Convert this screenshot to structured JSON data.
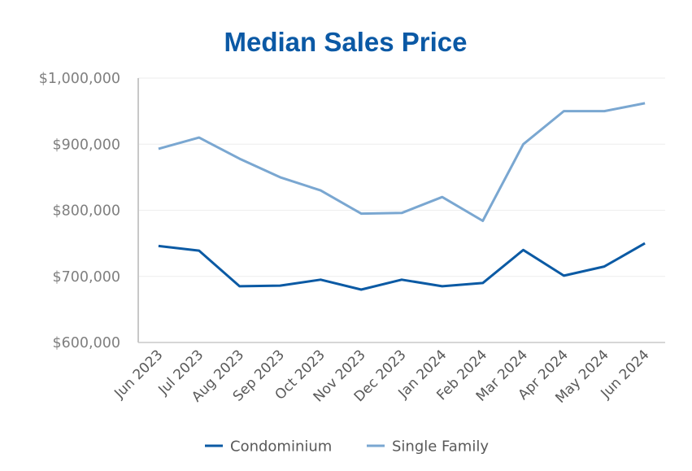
{
  "chart_data": {
    "type": "line",
    "title": "Median Sales Price",
    "xlabel": "",
    "ylabel": "",
    "categories": [
      "Jun 2023",
      "Jul 2023",
      "Aug 2023",
      "Sep 2023",
      "Oct 2023",
      "Nov 2023",
      "Dec 2023",
      "Jan 2024",
      "Feb 2024",
      "Mar 2024",
      "Apr 2024",
      "May 2024",
      "Jun 2024"
    ],
    "ylim": [
      600000,
      1000000
    ],
    "yticks": [
      600000,
      700000,
      800000,
      900000,
      1000000
    ],
    "ytick_labels": [
      "$600,000",
      "$700,000",
      "$800,000",
      "$900,000",
      "$1,000,000"
    ],
    "grid": true,
    "legend_position": "bottom",
    "series": [
      {
        "name": "Condominium",
        "color": "#0b5aa4",
        "values": [
          746000,
          739000,
          685000,
          686000,
          695000,
          680000,
          695000,
          685000,
          690000,
          740000,
          701000,
          715000,
          750000
        ]
      },
      {
        "name": "Single Family",
        "color": "#7aa7d1",
        "values": [
          893000,
          910000,
          878000,
          850000,
          830000,
          795000,
          796000,
          820000,
          784000,
          900000,
          950000,
          950000,
          962000
        ]
      }
    ],
    "colors": {
      "title": "#0b59a5",
      "axis": "#c8c8c8",
      "grid": "#eeeeee"
    }
  }
}
